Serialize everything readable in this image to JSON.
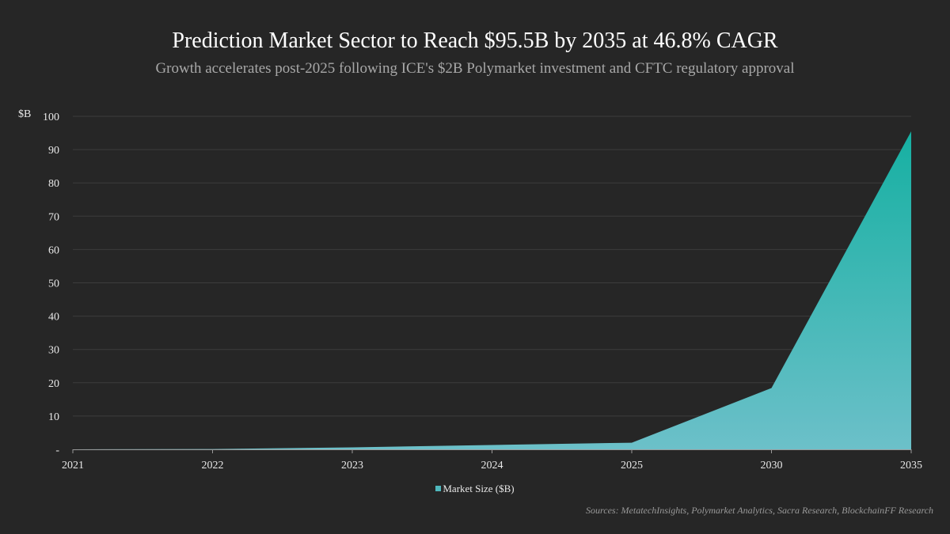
{
  "chart_data": {
    "type": "area",
    "title": "Prediction Market Sector to Reach $95.5B by 2035 at 46.8% CAGR",
    "subtitle": "Growth accelerates post-2025 following ICE's $2B Polymarket investment and CFTC regulatory approval",
    "xlabel": "",
    "ylabel": "$B",
    "categories": [
      "2021",
      "2022",
      "2023",
      "2024",
      "2025",
      "2030",
      "2035"
    ],
    "series": [
      {
        "name": "Market Size ($B)",
        "values": [
          0.0,
          0.1,
          0.6,
          1.3,
          2.0,
          18.4,
          95.5
        ]
      }
    ],
    "ylim": [
      0,
      100
    ],
    "yticks": [
      0,
      10,
      20,
      30,
      40,
      50,
      60,
      70,
      80,
      90,
      100
    ],
    "ytick_labels": [
      "-",
      "10",
      "20",
      "30",
      "40",
      "50",
      "60",
      "70",
      "80",
      "90",
      "100"
    ],
    "grid": true,
    "legend_position": "bottom-center",
    "colors": {
      "fill_top": "#16b0a2",
      "fill_bottom": "#6cc0c9",
      "background": "#262626",
      "grid": "#3c3c3c",
      "axis": "#9a9a9a"
    },
    "source": "Sources: MetatechInsights, Polymarket Analytics, Sacra Research, BlockchainFF Research"
  }
}
